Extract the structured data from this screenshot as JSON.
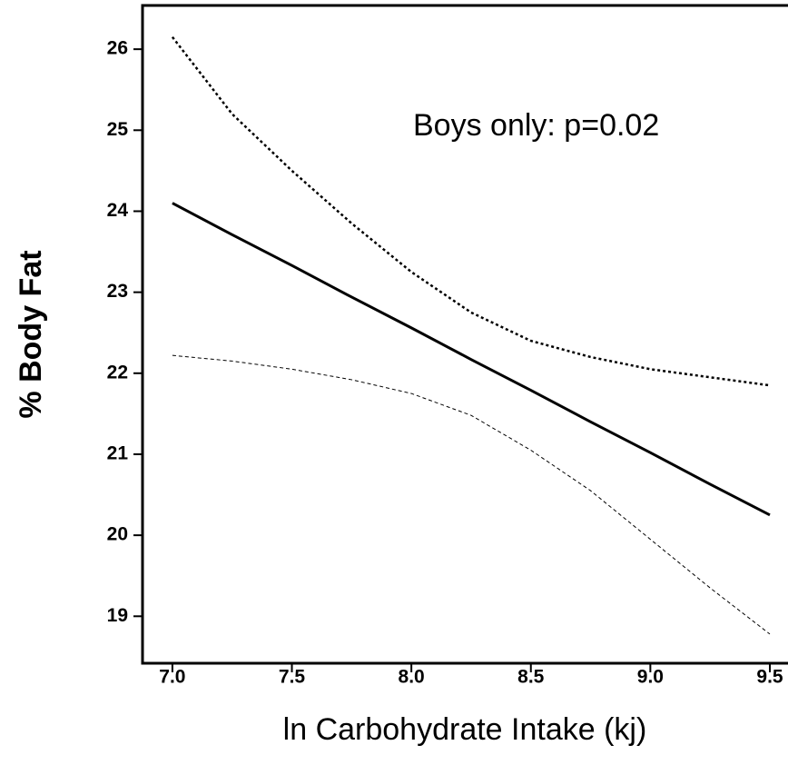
{
  "chart_data": {
    "type": "line",
    "annotation": "Boys only: p=0.02",
    "xlabel": "ln Carbohydrate Intake (kj)",
    "ylabel": "% Body Fat",
    "x": [
      7.0,
      7.25,
      7.5,
      7.75,
      8.0,
      8.25,
      8.5,
      8.75,
      9.0,
      9.25,
      9.5
    ],
    "series": [
      {
        "color": "#000000",
        "style": "solid",
        "values": [
          24.1,
          23.71,
          23.33,
          22.94,
          22.56,
          22.17,
          21.79,
          21.4,
          21.02,
          20.63,
          20.25
        ]
      },
      {
        "color": "#000000",
        "style": "dotted",
        "values": [
          26.15,
          25.2,
          24.5,
          23.85,
          23.25,
          22.75,
          22.4,
          22.2,
          22.05,
          21.95,
          21.85
        ]
      },
      {
        "color": "#000000",
        "style": "dashed",
        "values": [
          22.22,
          22.15,
          22.05,
          21.92,
          21.75,
          21.48,
          21.05,
          20.55,
          19.95,
          19.35,
          18.78
        ]
      }
    ],
    "xlim": [
      6.875,
      9.576
    ],
    "xticks": [
      {
        "value": 7,
        "label": "7.0"
      },
      7.5,
      {
        "value": 8,
        "label": "8.0"
      },
      8.5,
      {
        "value": 9,
        "label": "9.0"
      },
      9.5
    ],
    "ylim": [
      18.42,
      26.54
    ],
    "yticks": [
      19,
      20,
      21,
      22,
      23,
      24,
      25,
      26
    ]
  }
}
